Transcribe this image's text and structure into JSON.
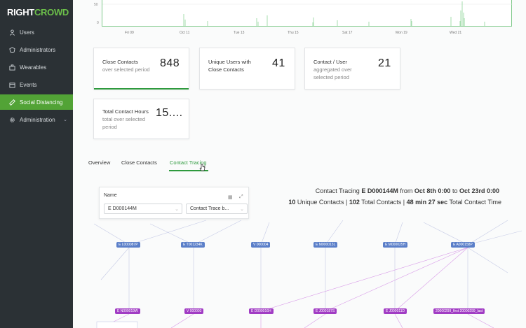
{
  "app": {
    "logo_main": "RIGHT",
    "logo_accent": "CROWD"
  },
  "sidebar": {
    "items": [
      {
        "label": "Users",
        "icon": "user-icon"
      },
      {
        "label": "Administrators",
        "icon": "shield-icon"
      },
      {
        "label": "Wearables",
        "icon": "briefcase-icon"
      },
      {
        "label": "Events",
        "icon": "calendar-icon"
      },
      {
        "label": "Social Distancing",
        "icon": "ruler-icon",
        "active": true
      },
      {
        "label": "Administration",
        "icon": "gear-icon"
      }
    ]
  },
  "chart": {
    "y_tick": "50",
    "y_tick_zero": "0",
    "x_labels": [
      "Fri 09",
      "Oct 11",
      "Tue 13",
      "Thu 15",
      "Sat 17",
      "Mon 19",
      "Wed 21"
    ]
  },
  "cards": [
    {
      "title": "Close Contacts",
      "subtitle": "over selected period",
      "value": "848"
    },
    {
      "title": "Unique Users with",
      "subtitle": "Close Contacts",
      "value": "41"
    },
    {
      "title": "Contact / User",
      "subtitle": "aggregated over",
      "subtitle2": "selected period",
      "value": "21"
    },
    {
      "title": "Total Contact Hours",
      "subtitle": "total over selected",
      "subtitle2": "period",
      "value": "15...."
    }
  ],
  "tabs": [
    "Overview",
    "Close Contacts",
    "Contact Tracing"
  ],
  "filter": {
    "label": "Name",
    "name_value": "E D000144M",
    "trace_value": "Contact Trace b..."
  },
  "trace": {
    "title_prefix": "Contact Tracing",
    "person": "E D000144M",
    "from_word": "from",
    "from_date": "Oct 8th 0:00",
    "to_word": "to",
    "to_date": "Oct 23rd 0:00",
    "unique_count": "10",
    "unique_label": "Unique Contacts |",
    "total_count": "102",
    "total_label": "Total Contacts |",
    "duration": "48 min 27 sec",
    "duration_label": "Total Contact Time"
  },
  "graph": {
    "top_nodes": [
      "E L000087P",
      "E T001234K",
      "V 000004",
      "E M000013L",
      "E M000025H",
      "E A000158P"
    ],
    "bottom_nodes": [
      "E N000019W",
      "V 000003",
      "E D000016H",
      "E J000187S",
      "E J000011D",
      "20000299_first 20000299_last"
    ],
    "colors": {
      "top": "#5b7fc9",
      "bottom": "#a13cc4"
    }
  }
}
